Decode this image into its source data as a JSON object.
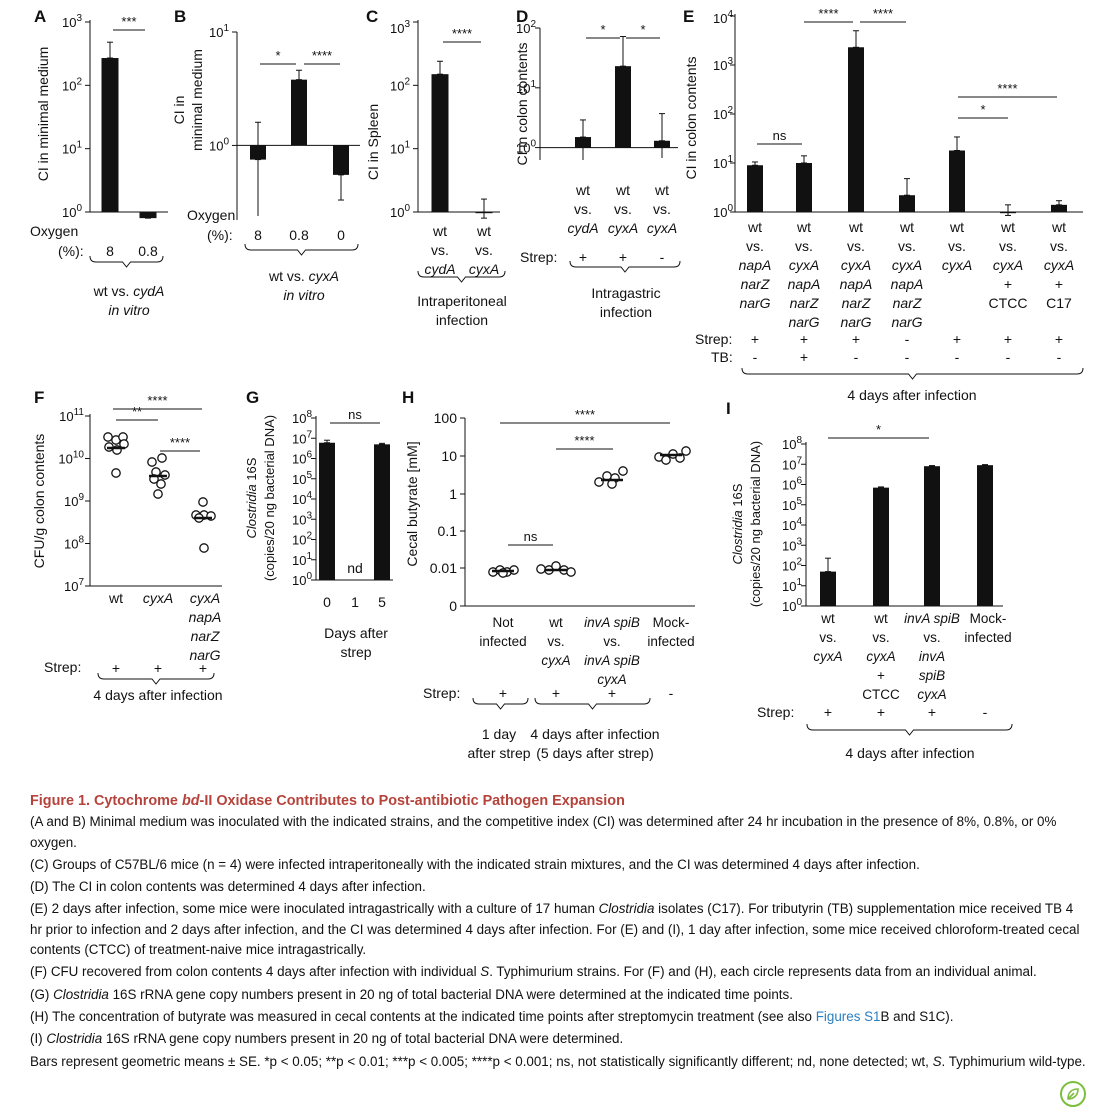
{
  "panels": {
    "A": {
      "letter": "A",
      "ylabel": "CI in minimal medium",
      "ticks": [
        "10",
        "10",
        "10",
        "10"
      ],
      "tick_exps": [
        "0",
        "1",
        "2",
        "3"
      ],
      "row1_label": "Oxygen",
      "row2_label": "(%):",
      "oxygen": [
        "8",
        "0.8"
      ],
      "group_label": "wt vs. ",
      "group_gene": "cydA",
      "group_sub": "in vitro",
      "sig": [
        "***"
      ]
    },
    "B": {
      "letter": "B",
      "ylabel_1": "CI in",
      "ylabel_2": "minimal medium",
      "ticks": [
        "10",
        "10"
      ],
      "tick_exps": [
        "0",
        "1"
      ],
      "row1_label": "Oxygen",
      "row2_label": "(%):",
      "oxygen": [
        "8",
        "0.8",
        "0"
      ],
      "group_label": "wt vs. ",
      "group_gene": "cyxA",
      "group_sub": "in vitro",
      "sig": [
        "*",
        "****"
      ]
    },
    "C": {
      "letter": "C",
      "ylabel": "CI in Spleen",
      "ticks": [
        "10",
        "10",
        "10",
        "10"
      ],
      "tick_exps": [
        "0",
        "1",
        "2",
        "3"
      ],
      "cats": [
        [
          "wt",
          "vs.",
          "cydA"
        ],
        [
          "wt",
          "vs.",
          "cyxA"
        ]
      ],
      "group_label_1": "Intraperitoneal",
      "group_label_2": "infection",
      "sig": [
        "****"
      ]
    },
    "D": {
      "letter": "D",
      "ylabel": "CI in colon contents",
      "ticks": [
        "10",
        "10",
        "10"
      ],
      "tick_exps": [
        "0",
        "1",
        "2"
      ],
      "cats": [
        [
          "wt",
          "vs.",
          "cydA"
        ],
        [
          "wt",
          "vs.",
          "cyxA"
        ],
        [
          "wt",
          "vs.",
          "cyxA"
        ]
      ],
      "strep_label": "Strep:",
      "strep": [
        "+",
        "+",
        "-"
      ],
      "group_label_1": "Intragastric",
      "group_label_2": "infection",
      "sig": [
        "*",
        "*"
      ]
    },
    "E": {
      "letter": "E",
      "ylabel": "CI in colon contents",
      "ticks": [
        "10",
        "10",
        "10",
        "10",
        "10"
      ],
      "tick_exps": [
        "0",
        "1",
        "2",
        "3",
        "4"
      ],
      "cats": [
        [
          "wt",
          "vs.",
          "napA",
          "narZ",
          "narG",
          ""
        ],
        [
          "wt",
          "vs.",
          "cyxA",
          "napA",
          "narZ",
          "narG"
        ],
        [
          "wt",
          "vs.",
          "cyxA",
          "napA",
          "narZ",
          "narG"
        ],
        [
          "wt",
          "vs.",
          "cyxA",
          "napA",
          "narZ",
          "narG"
        ],
        [
          "wt",
          "vs.",
          "cyxA",
          "",
          "",
          ""
        ],
        [
          "wt",
          "vs.",
          "cyxA",
          "+",
          "CTCC",
          ""
        ],
        [
          "wt",
          "vs.",
          "cyxA",
          "+",
          "C17",
          ""
        ]
      ],
      "strep_label": "Strep:",
      "strep": [
        "+",
        "+",
        "+",
        "-",
        "+",
        "+",
        "+"
      ],
      "tb_label": "TB:",
      "tb": [
        "-",
        "+",
        "-",
        "-",
        "-",
        "-",
        "-"
      ],
      "group_label": "4 days after infection",
      "sig": [
        "ns",
        "****",
        "****",
        "*",
        "****"
      ]
    },
    "F": {
      "letter": "F",
      "ylabel": "CFU/g colon contents",
      "ticks": [
        "10",
        "10",
        "10",
        "10",
        "10"
      ],
      "tick_exps": [
        "7",
        "8",
        "9",
        "10",
        "11"
      ],
      "cats": [
        [
          "wt"
        ],
        [
          "cyxA"
        ],
        [
          "cyxA",
          "napA",
          "narZ",
          "narG"
        ]
      ],
      "strep_label": "Strep:",
      "strep": [
        "+",
        "+",
        "+"
      ],
      "group_label": "4 days after infection",
      "sig": [
        "**",
        "****",
        "****"
      ]
    },
    "G": {
      "letter": "G",
      "ylabel_1": "Clostridia",
      "ylabel_1b": " 16S",
      "ylabel_2": "(copies/20 ng bacterial DNA)",
      "ticks": [
        "10",
        "10",
        "10",
        "10",
        "10",
        "10",
        "10",
        "10",
        "10"
      ],
      "tick_exps": [
        "0",
        "1",
        "2",
        "3",
        "4",
        "5",
        "6",
        "7",
        "8"
      ],
      "days": [
        "0",
        "1",
        "5"
      ],
      "nd": "nd",
      "xlabel_1": "Days after",
      "xlabel_2": "strep",
      "sig": [
        "ns"
      ]
    },
    "H": {
      "letter": "H",
      "ylabel": "Cecal butyrate [mM]",
      "ticks": [
        "0",
        "0.01",
        "0.1",
        "1",
        "10",
        "100"
      ],
      "cats": [
        [
          "Not",
          "infected",
          ""
        ],
        [
          "wt",
          "vs.",
          "cyxA"
        ],
        [
          "invA spiB",
          "vs.",
          "invA spiB",
          "cyxA"
        ],
        [
          "Mock-",
          "infected",
          ""
        ]
      ],
      "strep_label": "Strep:",
      "strep": [
        "+",
        "+",
        "+",
        "-"
      ],
      "group1_1": "1 day",
      "group1_2": "after strep",
      "group2_1": "4 days after infection",
      "group2_2": "(5 days after strep)",
      "sig": [
        "ns",
        "****",
        "****"
      ]
    },
    "I": {
      "letter": "I",
      "ylabel_1": "Clostridia",
      "ylabel_1b": " 16S",
      "ylabel_2": "(copies/20 ng bacterial DNA)",
      "ticks": [
        "10",
        "10",
        "10",
        "10",
        "10",
        "10",
        "10",
        "10",
        "10"
      ],
      "tick_exps": [
        "0",
        "1",
        "2",
        "3",
        "4",
        "5",
        "6",
        "7",
        "8"
      ],
      "cats": [
        [
          "wt",
          "vs.",
          "cyxA",
          ""
        ],
        [
          "wt",
          "vs.",
          "cyxA",
          "+",
          "CTCC"
        ],
        [
          "invA spiB",
          "vs.",
          "invA",
          "spiB",
          "cyxA"
        ],
        [
          "Mock-",
          "infected"
        ]
      ],
      "strep_label": "Strep:",
      "strep": [
        "+",
        "+",
        "+",
        "-"
      ],
      "group_label": "4 days after infection",
      "sig": [
        "*"
      ]
    }
  },
  "chart_data": [
    {
      "panel": "A",
      "type": "bar",
      "yscale": "log",
      "ylim": [
        1,
        1000
      ],
      "ylabel": "CI in minimal medium",
      "categories": [
        "8",
        "0.8"
      ],
      "values": [
        270,
        0.8
      ]
    },
    {
      "panel": "B",
      "type": "bar",
      "yscale": "log",
      "ylim": [
        0.25,
        10
      ],
      "ylabel": "CI in minimal medium",
      "categories": [
        "8",
        "0.8",
        "0"
      ],
      "values": [
        0.75,
        3.8,
        0.55
      ]
    },
    {
      "panel": "C",
      "type": "bar",
      "yscale": "log",
      "ylim": [
        1,
        1000
      ],
      "ylabel": "CI in Spleen",
      "categories": [
        "wt vs. cydA",
        "wt vs. cyxA"
      ],
      "values": [
        150,
        1.0
      ]
    },
    {
      "panel": "D",
      "type": "bar",
      "yscale": "log",
      "ylim": [
        0.7,
        100
      ],
      "ylabel": "CI in colon contents",
      "categories": [
        "wt vs. cydA",
        "wt vs. cyxA",
        "wt vs. cyxA"
      ],
      "values": [
        1.5,
        23,
        1.3
      ]
    },
    {
      "panel": "E",
      "type": "bar",
      "yscale": "log",
      "ylim": [
        1,
        10000
      ],
      "ylabel": "CI in colon contents",
      "categories": [
        "wt vs. napA narZ narG",
        "wt vs. cyxA napA narZ narG",
        "wt vs. cyxA napA narZ narG",
        "wt vs. cyxA napA narZ narG",
        "wt vs. cyxA",
        "wt vs. cyxA + CTCC",
        "wt vs. cyxA + C17"
      ],
      "values": [
        9,
        10,
        2300,
        2.2,
        18,
        1.0,
        1.4
      ]
    },
    {
      "panel": "F",
      "type": "scatter",
      "yscale": "log",
      "ylim": [
        10000000.0,
        100000000000.0
      ],
      "ylabel": "CFU/g colon contents",
      "categories": [
        "wt",
        "cyxA",
        "cyxA napA narZ narG"
      ],
      "means": [
        16000000000.0,
        3500000000.0,
        380000000.0
      ]
    },
    {
      "panel": "G",
      "type": "bar",
      "yscale": "log",
      "ylim": [
        1,
        100000000.0
      ],
      "ylabel": "Clostridia 16S (copies/20 ng bacterial DNA)",
      "categories": [
        "0",
        "1",
        "5"
      ],
      "values": [
        6000000.0,
        null,
        5000000.0
      ]
    },
    {
      "panel": "H",
      "type": "scatter",
      "yscale": "log",
      "ylim": [
        0,
        100
      ],
      "ylabel": "Cecal butyrate [mM]",
      "categories": [
        "Not infected",
        "wt vs. cyxA",
        "invA spiB vs. invA spiB cyxA",
        "Mock-infected"
      ],
      "means": [
        0.009,
        0.009,
        2.3,
        10
      ]
    },
    {
      "panel": "I",
      "type": "bar",
      "yscale": "log",
      "ylim": [
        1,
        100000000.0
      ],
      "ylabel": "Clostridia 16S (copies/20 ng bacterial DNA)",
      "categories": [
        "wt vs. cyxA",
        "wt vs. cyxA + CTCC",
        "invA spiB vs. invA spiB cyxA",
        "Mock-infected"
      ],
      "values": [
        50,
        700000.0,
        8000000.0,
        9000000.0
      ]
    }
  ],
  "caption": {
    "title_1": "Figure 1.  Cytochrome ",
    "title_2": "bd",
    "title_3": "-II Oxidase Contributes to Post-antibiotic Pathogen Expansion",
    "p1": "(A and B) Minimal medium was inoculated with the indicated strains, and the competitive index (CI) was determined after 24 hr incubation in the presence of 8%, 0.8%, or 0% oxygen.",
    "p2": "(C) Groups of C57BL/6 mice (n = 4) were infected intraperitoneally with the indicated strain mixtures, and the CI was determined 4 days after infection.",
    "p3": "(D) The CI in colon contents was determined 4 days after infection.",
    "p4a": "(E) 2 days after infection, some mice were inoculated intragastrically with a culture of 17 human ",
    "p4b": "Clostridia",
    "p4c": " isolates (C17). For tributyrin (TB) supplementation mice received TB 4 hr prior to infection and 2 days after infection, and the CI was determined 4 days after infection. For (E) and (I), 1 day after infection, some mice received chloroform-treated cecal contents (CTCC) of treatment-naive mice intragastrically.",
    "p5a": "(F) CFU recovered from colon contents 4 days after infection with individual ",
    "p5b": "S",
    "p5c": ". Typhimurium strains. For (F) and (H), each circle represents data from an individual animal.",
    "p6a": "(G) ",
    "p6b": "Clostridia",
    "p6c": " 16S rRNA gene copy numbers present in 20 ng of total bacterial DNA were determined at the indicated time points.",
    "p7a": "(H) The concentration of butyrate was measured in cecal contents at the indicated time points after streptomycin treatment (see also ",
    "p7b": "Figures S1",
    "p7c": "B and S1C).",
    "p8a": "(I) ",
    "p8b": "Clostridia",
    "p8c": " 16S rRNA gene copy numbers present in 20 ng of total bacterial DNA were determined.",
    "p9a": "Bars represent geometric means ± SE. *p < 0.05; **p < 0.01; ***p < 0.005; ****p < 0.001; ns, not statistically significantly different; nd, none detected; wt, ",
    "p9b": "S",
    "p9c": ". Typhimurium wild-type."
  },
  "badge_icon": "leaf-icon"
}
